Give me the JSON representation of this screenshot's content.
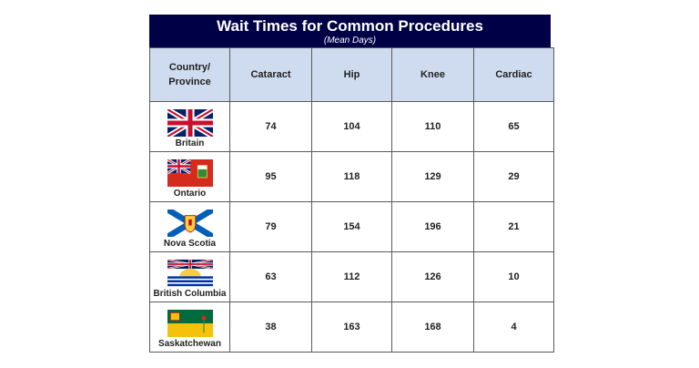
{
  "chart_data": {
    "type": "table",
    "title": "Wait Times for Common Procedures",
    "subtitle": "(Mean Days)",
    "columns": [
      "Country/\nProvince",
      "Cataract",
      "Hip",
      "Knee",
      "Cardiac"
    ],
    "rows": [
      {
        "region": "Britain",
        "values": [
          74,
          104,
          110,
          65
        ],
        "flag": "britain-flag"
      },
      {
        "region": "Ontario",
        "values": [
          95,
          118,
          129,
          29
        ],
        "flag": "ontario-flag"
      },
      {
        "region": "Nova Scotia",
        "values": [
          79,
          154,
          196,
          21
        ],
        "flag": "nova-scotia-flag"
      },
      {
        "region": "British Columbia",
        "values": [
          63,
          112,
          126,
          10
        ],
        "flag": "british-columbia-flag"
      },
      {
        "region": "Saskatchewan",
        "values": [
          38,
          163,
          168,
          4
        ],
        "flag": "saskatchewan-flag"
      }
    ]
  },
  "colors": {
    "title_bg": "#000046",
    "header_bg": "#cfdcf0"
  }
}
